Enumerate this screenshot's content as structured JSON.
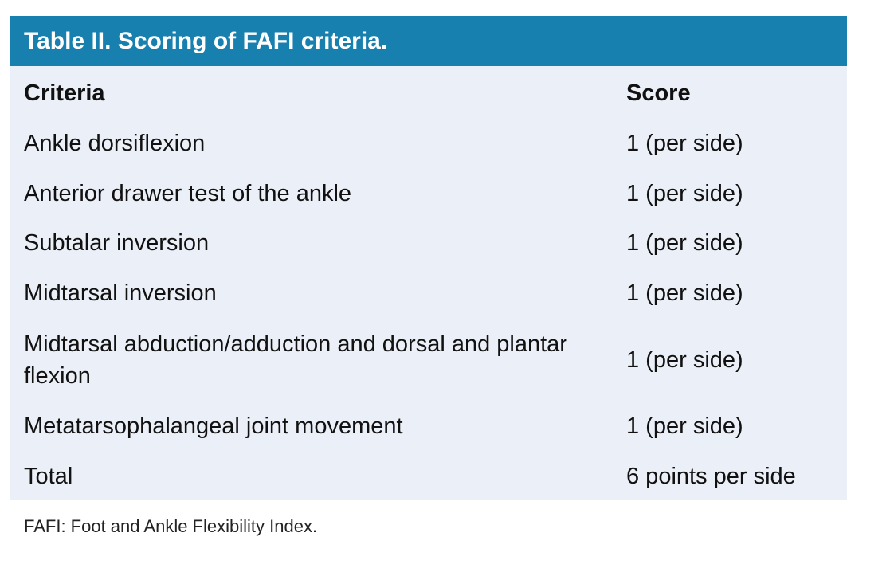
{
  "title": "Table II. Scoring of FAFI criteria.",
  "columns": [
    "Criteria",
    "Score"
  ],
  "rows": [
    {
      "criteria": "Ankle dorsiflexion",
      "score": "1 (per side)"
    },
    {
      "criteria": "Anterior drawer test of the ankle",
      "score": "1 (per side)"
    },
    {
      "criteria": "Subtalar inversion",
      "score": "1 (per side)"
    },
    {
      "criteria": "Midtarsal inversion",
      "score": "1 (per side)"
    },
    {
      "criteria": "Midtarsal abduction/adduction and dorsal and plantar flexion",
      "score": "1 (per side)"
    },
    {
      "criteria": "Metatarsophalangeal joint movement",
      "score": "1 (per side)"
    },
    {
      "criteria": "Total",
      "score": "6 points per side"
    }
  ],
  "footnote": "FAFI: Foot and Ankle Flexibility Index.",
  "colors": {
    "header": "#1780ae",
    "table_bg": "#ebeff7"
  }
}
